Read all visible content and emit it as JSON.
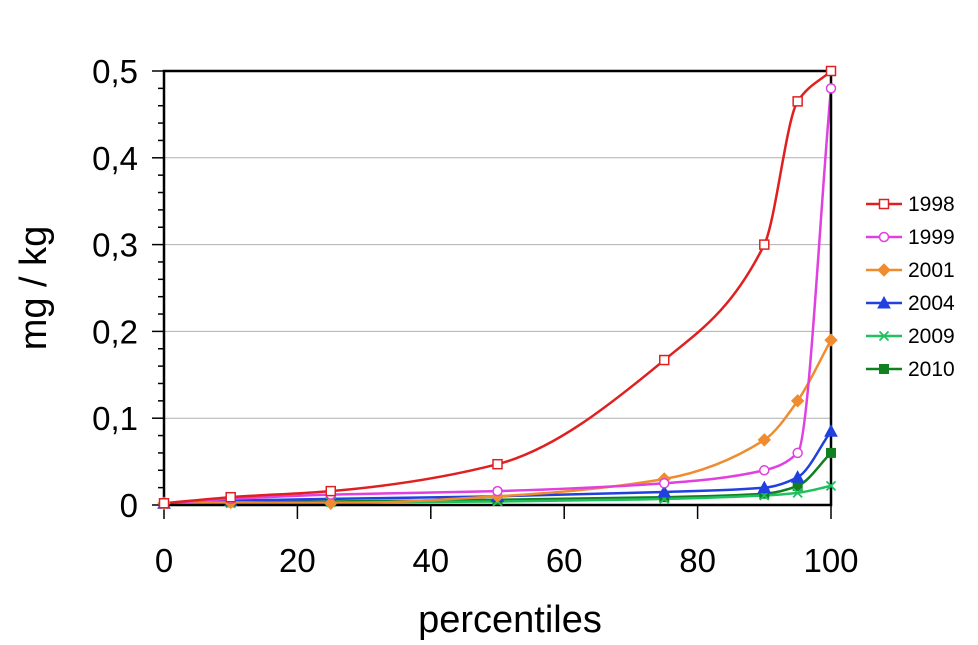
{
  "chart_data": {
    "type": "line",
    "title": "",
    "xlabel": "percentiles",
    "ylabel": "mg / kg",
    "xlim": [
      0,
      100
    ],
    "ylim": [
      0,
      0.5
    ],
    "x_ticks": [
      0,
      20,
      40,
      60,
      80,
      100
    ],
    "x_tick_labels": [
      "0",
      "20",
      "40",
      "60",
      "80",
      "100"
    ],
    "y_ticks": [
      0,
      0.1,
      0.2,
      0.3,
      0.4,
      0.5
    ],
    "y_tick_labels": [
      "0",
      "0,1",
      "0,2",
      "0,3",
      "0,4",
      "0,5"
    ],
    "grid": "horizontal",
    "legend_position": "right",
    "x": [
      0,
      10,
      25,
      50,
      75,
      90,
      95,
      100
    ],
    "series": [
      {
        "name": "1998",
        "color": "#e02020",
        "marker": "square-open",
        "values": [
          0.002,
          0.009,
          0.016,
          0.047,
          0.167,
          0.3,
          0.465,
          0.5
        ]
      },
      {
        "name": "1999",
        "color": "#e040e0",
        "marker": "circle-open",
        "values": [
          0.002,
          0.007,
          0.012,
          0.016,
          0.025,
          0.04,
          0.06,
          0.48
        ]
      },
      {
        "name": "2001",
        "color": "#f08c30",
        "marker": "diamond",
        "values": [
          0.002,
          0.003,
          0.002,
          0.01,
          0.03,
          0.075,
          0.12,
          0.19
        ]
      },
      {
        "name": "2004",
        "color": "#2040e0",
        "marker": "triangle",
        "values": [
          0.002,
          0.005,
          0.007,
          0.01,
          0.015,
          0.02,
          0.032,
          0.085
        ]
      },
      {
        "name": "2009",
        "color": "#20c060",
        "marker": "x",
        "values": [
          0.001,
          0.002,
          0.003,
          0.004,
          0.007,
          0.011,
          0.014,
          0.022
        ]
      },
      {
        "name": "2010",
        "color": "#108020",
        "marker": "square",
        "values": [
          0.002,
          0.003,
          0.004,
          0.006,
          0.009,
          0.013,
          0.022,
          0.06
        ]
      }
    ]
  }
}
